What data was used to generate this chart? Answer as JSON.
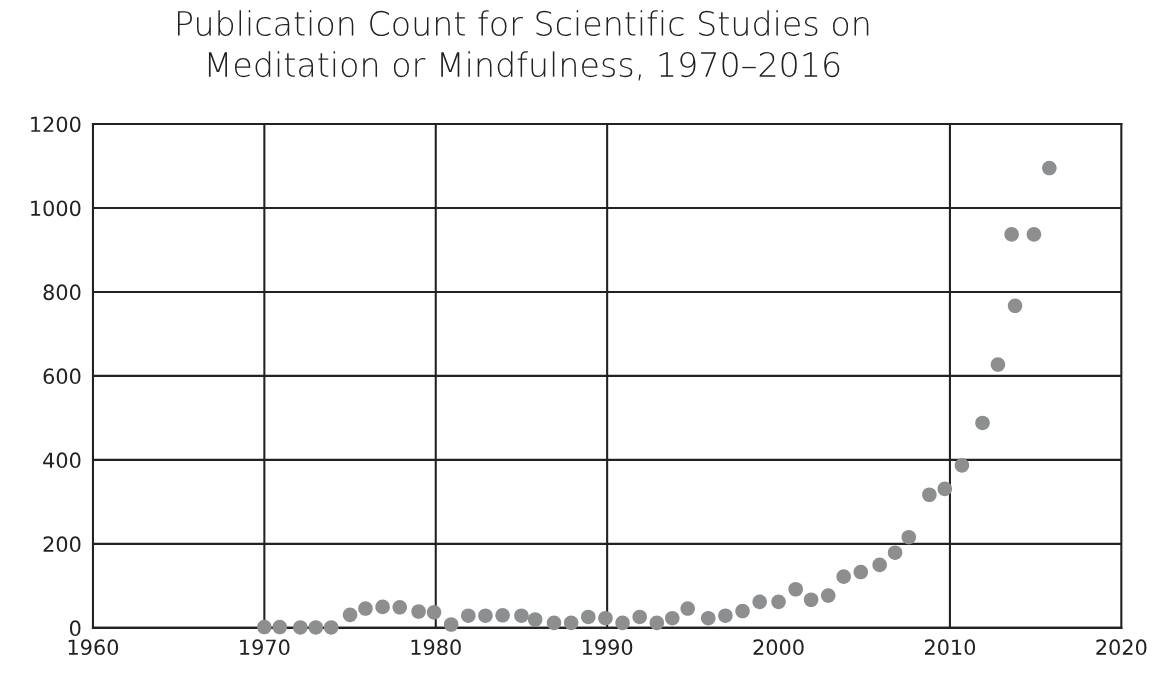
{
  "chart_data": {
    "type": "scatter",
    "title": "Publication Count for Scientific Studies on\nMeditation or Mindfulness, 1970–2016",
    "x": [
      1970.0,
      1970.9,
      1972.1,
      1973.0,
      1973.9,
      1975.0,
      1975.9,
      1976.9,
      1977.9,
      1979.0,
      1979.9,
      1980.9,
      1981.9,
      1982.9,
      1983.9,
      1985.0,
      1985.8,
      1986.9,
      1987.9,
      1988.9,
      1989.9,
      1990.9,
      1991.9,
      1992.9,
      1993.8,
      1994.7,
      1995.9,
      1996.9,
      1997.9,
      1998.9,
      2000.0,
      2001.0,
      2001.9,
      2002.9,
      2003.8,
      2004.8,
      2005.9,
      2006.8,
      2007.6,
      2008.8,
      2009.7,
      2010.7,
      2011.9,
      2012.8,
      2013.6,
      2013.8,
      2014.9,
      2015.8
    ],
    "series": [
      {
        "color": "#8c8e90",
        "values": [
          2,
          2,
          1,
          1,
          1,
          31,
          46,
          50,
          49,
          39,
          37,
          8,
          29,
          29,
          30,
          29,
          20,
          12,
          12,
          26,
          23,
          12,
          26,
          12,
          23,
          46,
          23,
          29,
          40,
          62,
          62,
          92,
          67,
          77,
          122,
          133,
          150,
          179,
          216,
          317,
          331,
          387,
          488,
          627,
          937,
          767,
          937,
          1095
        ]
      }
    ],
    "marker": "circle",
    "xlim": [
      1960,
      2020
    ],
    "ylim": [
      0,
      1200
    ],
    "xticks": [
      1960,
      1970,
      1980,
      1990,
      2000,
      2010,
      2020
    ],
    "yticks": [
      0,
      200,
      400,
      600,
      800,
      1000,
      1200
    ],
    "grid": "y",
    "ref_lines": [
      {
        "axis": "x",
        "value": 1970
      },
      {
        "axis": "x",
        "value": 1980
      },
      {
        "axis": "x",
        "value": 1990
      },
      {
        "axis": "x",
        "value": 2010
      }
    ]
  }
}
